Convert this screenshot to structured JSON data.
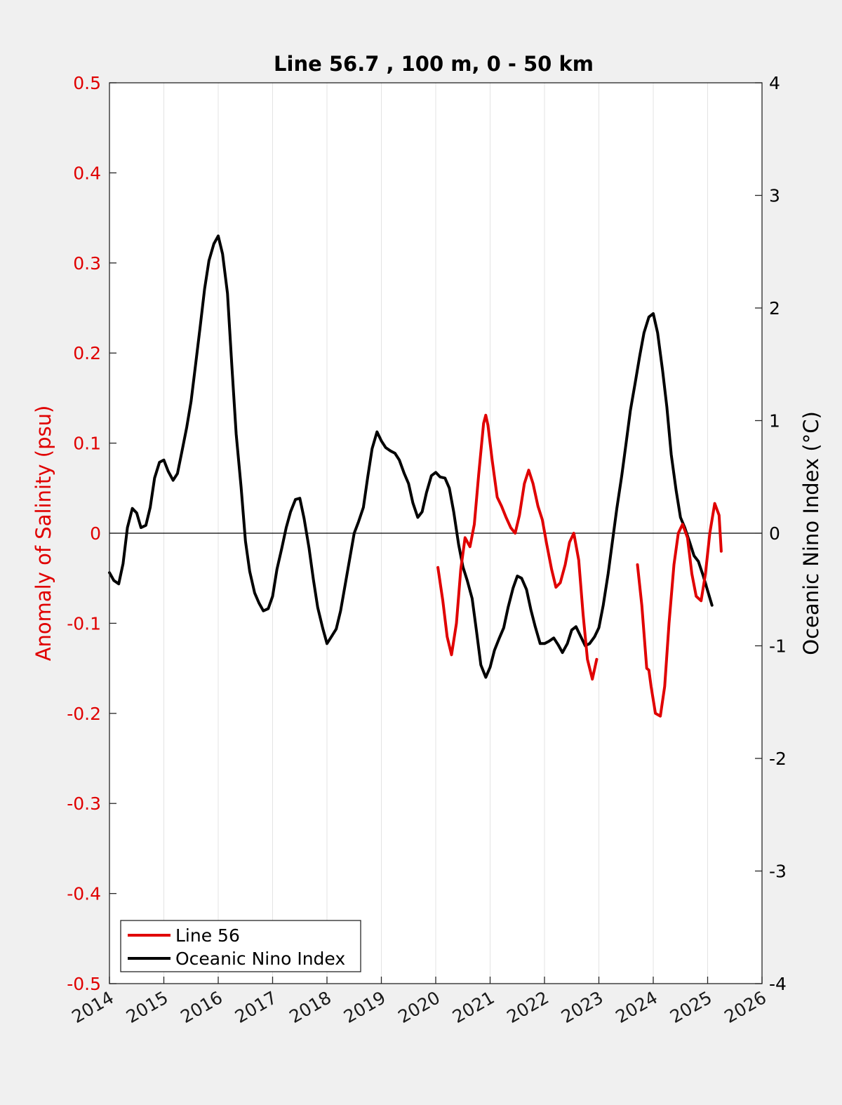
{
  "chart_data": {
    "type": "line",
    "title": "Line 56.7 , 100 m, 0 - 50 km",
    "xlim": [
      2014,
      2026
    ],
    "x_ticks": [
      "2014",
      "2015",
      "2016",
      "2017",
      "2018",
      "2019",
      "2020",
      "2021",
      "2022",
      "2023",
      "2024",
      "2025",
      "2026"
    ],
    "grid": "vertical",
    "y_left": {
      "label": "Anomaly of Salinity (psu)",
      "ylim": [
        -0.5,
        0.5
      ],
      "ticks": [
        "0.5",
        "0.4",
        "0.3",
        "0.2",
        "0.1",
        "0",
        "-0.1",
        "-0.2",
        "-0.3",
        "-0.4",
        "-0.5"
      ],
      "color": "#e00000"
    },
    "y_right": {
      "label": "Oceanic Nino Index (°C)",
      "ylim": [
        -4,
        4
      ],
      "ticks": [
        "4",
        "3",
        "2",
        "1",
        "0",
        "-1",
        "-2",
        "-3",
        "-4"
      ],
      "color": "#000000"
    },
    "legend": {
      "placement": "bottom-left"
    },
    "series": [
      {
        "name": "Line 56",
        "axis": "left",
        "color": "#e00000",
        "segments": [
          [
            [
              2020.04,
              -0.038
            ],
            [
              2020.13,
              -0.075
            ],
            [
              2020.21,
              -0.115
            ],
            [
              2020.29,
              -0.135
            ],
            [
              2020.38,
              -0.1
            ],
            [
              2020.46,
              -0.04
            ],
            [
              2020.54,
              -0.005
            ],
            [
              2020.63,
              -0.015
            ],
            [
              2020.71,
              0.01
            ],
            [
              2020.79,
              0.065
            ],
            [
              2020.88,
              0.122
            ],
            [
              2020.92,
              0.131
            ],
            [
              2020.96,
              0.12
            ],
            [
              2021.04,
              0.08
            ],
            [
              2021.13,
              0.04
            ],
            [
              2021.21,
              0.03
            ],
            [
              2021.29,
              0.018
            ],
            [
              2021.38,
              0.006
            ],
            [
              2021.46,
              0.0
            ],
            [
              2021.54,
              0.02
            ],
            [
              2021.63,
              0.055
            ],
            [
              2021.71,
              0.07
            ],
            [
              2021.79,
              0.055
            ],
            [
              2021.88,
              0.03
            ],
            [
              2021.96,
              0.015
            ],
            [
              2022.04,
              -0.012
            ],
            [
              2022.13,
              -0.04
            ],
            [
              2022.21,
              -0.06
            ],
            [
              2022.29,
              -0.055
            ],
            [
              2022.38,
              -0.035
            ],
            [
              2022.46,
              -0.01
            ],
            [
              2022.54,
              0.0
            ],
            [
              2022.63,
              -0.03
            ],
            [
              2022.71,
              -0.09
            ],
            [
              2022.79,
              -0.14
            ],
            [
              2022.88,
              -0.162
            ],
            [
              2022.96,
              -0.14
            ]
          ],
          [
            [
              2023.71,
              -0.035
            ],
            [
              2023.79,
              -0.08
            ],
            [
              2023.88,
              -0.15
            ],
            [
              2023.92,
              -0.152
            ],
            [
              2023.96,
              -0.17
            ],
            [
              2024.04,
              -0.2
            ],
            [
              2024.13,
              -0.203
            ],
            [
              2024.21,
              -0.17
            ],
            [
              2024.29,
              -0.1
            ],
            [
              2024.38,
              -0.035
            ],
            [
              2024.46,
              0.0
            ],
            [
              2024.54,
              0.01
            ],
            [
              2024.63,
              -0.005
            ],
            [
              2024.71,
              -0.045
            ],
            [
              2024.79,
              -0.07
            ],
            [
              2024.88,
              -0.075
            ],
            [
              2024.96,
              -0.045
            ],
            [
              2025.04,
              0.0
            ],
            [
              2025.13,
              0.033
            ],
            [
              2025.21,
              0.02
            ],
            [
              2025.25,
              -0.02
            ]
          ]
        ]
      },
      {
        "name": "Oceanic Nino Index",
        "axis": "right",
        "color": "#000000",
        "x": [
          2014.0,
          2014.08,
          2014.17,
          2014.25,
          2014.33,
          2014.42,
          2014.5,
          2014.58,
          2014.67,
          2014.75,
          2014.83,
          2014.92,
          2015.0,
          2015.08,
          2015.17,
          2015.25,
          2015.33,
          2015.42,
          2015.5,
          2015.58,
          2015.67,
          2015.75,
          2015.83,
          2015.92,
          2016.0,
          2016.08,
          2016.17,
          2016.25,
          2016.33,
          2016.42,
          2016.5,
          2016.58,
          2016.67,
          2016.75,
          2016.83,
          2016.92,
          2017.0,
          2017.08,
          2017.17,
          2017.25,
          2017.33,
          2017.42,
          2017.5,
          2017.58,
          2017.67,
          2017.75,
          2017.83,
          2017.92,
          2018.0,
          2018.08,
          2018.17,
          2018.25,
          2018.33,
          2018.42,
          2018.5,
          2018.58,
          2018.67,
          2018.75,
          2018.83,
          2018.92,
          2019.0,
          2019.08,
          2019.17,
          2019.25,
          2019.33,
          2019.42,
          2019.5,
          2019.58,
          2019.67,
          2019.75,
          2019.83,
          2019.92,
          2020.0,
          2020.08,
          2020.17,
          2020.25,
          2020.33,
          2020.42,
          2020.5,
          2020.58,
          2020.67,
          2020.75,
          2020.83,
          2020.92,
          2021.0,
          2021.08,
          2021.17,
          2021.25,
          2021.33,
          2021.42,
          2021.5,
          2021.58,
          2021.67,
          2021.75,
          2021.83,
          2021.92,
          2022.0,
          2022.08,
          2022.17,
          2022.25,
          2022.33,
          2022.42,
          2022.5,
          2022.58,
          2022.67,
          2022.75,
          2022.83,
          2022.92,
          2023.0,
          2023.08,
          2023.17,
          2023.25,
          2023.33,
          2023.42,
          2023.5,
          2023.58,
          2023.67,
          2023.75,
          2023.83,
          2023.92,
          2024.0,
          2024.08,
          2024.17,
          2024.25,
          2024.33,
          2024.42,
          2024.5,
          2024.58,
          2024.67,
          2024.75,
          2024.83,
          2024.92,
          2025.0,
          2025.08
        ],
        "values": [
          -0.35,
          -0.42,
          -0.45,
          -0.27,
          0.05,
          0.22,
          0.18,
          0.05,
          0.07,
          0.23,
          0.49,
          0.63,
          0.65,
          0.55,
          0.47,
          0.53,
          0.72,
          0.94,
          1.17,
          1.48,
          1.84,
          2.17,
          2.42,
          2.57,
          2.64,
          2.48,
          2.13,
          1.49,
          0.88,
          0.41,
          -0.07,
          -0.34,
          -0.53,
          -0.62,
          -0.69,
          -0.67,
          -0.56,
          -0.32,
          -0.13,
          0.05,
          0.19,
          0.3,
          0.31,
          0.13,
          -0.13,
          -0.41,
          -0.66,
          -0.84,
          -0.98,
          -0.92,
          -0.85,
          -0.69,
          -0.47,
          -0.22,
          0.0,
          0.1,
          0.23,
          0.5,
          0.75,
          0.9,
          0.82,
          0.76,
          0.73,
          0.71,
          0.65,
          0.53,
          0.44,
          0.27,
          0.14,
          0.19,
          0.36,
          0.51,
          0.54,
          0.5,
          0.49,
          0.4,
          0.19,
          -0.1,
          -0.3,
          -0.42,
          -0.58,
          -0.87,
          -1.17,
          -1.28,
          -1.19,
          -1.04,
          -0.93,
          -0.84,
          -0.66,
          -0.49,
          -0.38,
          -0.4,
          -0.5,
          -0.68,
          -0.83,
          -0.98,
          -0.98,
          -0.96,
          -0.93,
          -0.99,
          -1.06,
          -0.98,
          -0.86,
          -0.83,
          -0.92,
          -1.0,
          -0.98,
          -0.92,
          -0.84,
          -0.64,
          -0.36,
          -0.07,
          0.22,
          0.51,
          0.8,
          1.09,
          1.34,
          1.57,
          1.78,
          1.92,
          1.95,
          1.78,
          1.45,
          1.12,
          0.7,
          0.38,
          0.14,
          0.05,
          -0.08,
          -0.2,
          -0.25,
          -0.38,
          -0.51,
          -0.64
        ]
      }
    ]
  }
}
